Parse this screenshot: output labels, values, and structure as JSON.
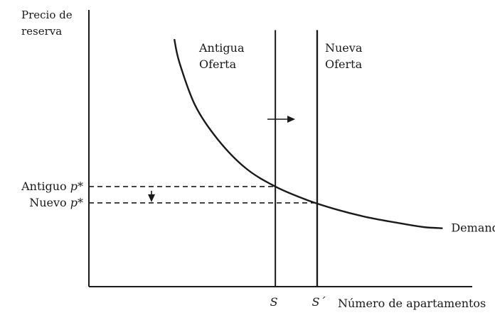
{
  "chart_data": {
    "type": "line",
    "ylabel": [
      "Precio de",
      "reserva"
    ],
    "xlabel": "Número de apartamentos",
    "series": [
      {
        "name": "Demanda",
        "x": [
          4.9,
          5.2,
          6.1,
          7.4,
          9.0,
          10.7,
          12.5,
          14.2,
          15.9,
          17.6,
          19.2,
          20.3
        ],
        "y": [
          9.84,
          8.9,
          7.2,
          5.85,
          4.71,
          3.98,
          3.45,
          3.07,
          2.77,
          2.55,
          2.37,
          2.32
        ]
      }
    ],
    "supply_old": {
      "label": [
        "Antigua",
        "Oferta"
      ],
      "x": 10.7,
      "tick": "S"
    },
    "supply_new": {
      "label": [
        "Nueva",
        "Oferta"
      ],
      "x": 13.1,
      "tick": "S´"
    },
    "prices": {
      "old": {
        "label": "Antiguo",
        "var": "p*",
        "y": 3.98
      },
      "new": {
        "label": "Nuevo",
        "var": "p*",
        "y": 3.33
      }
    },
    "xlim": [
      0,
      22
    ],
    "ylim": [
      0,
      11
    ],
    "grid": false,
    "legend": "none",
    "color": "#1a1a1a"
  }
}
